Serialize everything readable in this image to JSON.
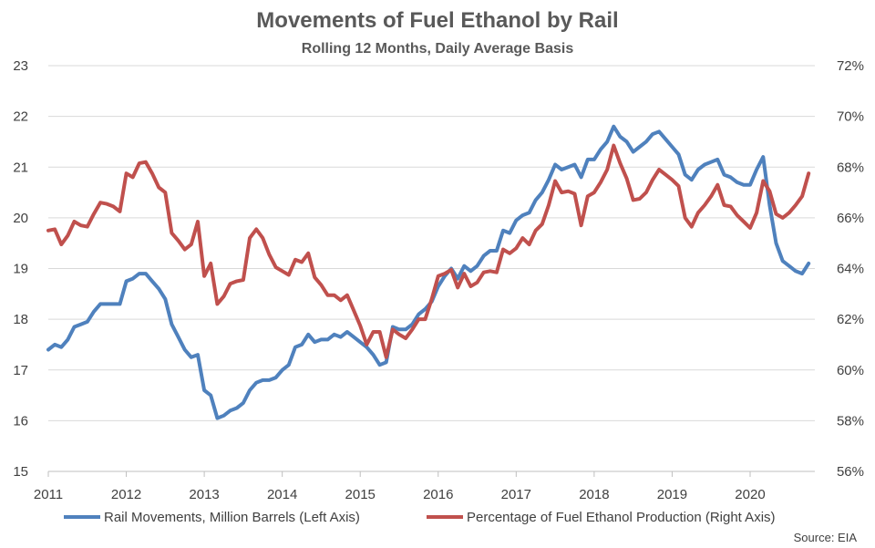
{
  "chart_data": {
    "type": "line",
    "title": "Movements of Fuel Ethanol by Rail",
    "subtitle": "Rolling 12 Months, Daily Average Basis",
    "source": "Source: EIA",
    "ylim_left": [
      15,
      23
    ],
    "ylim_right": [
      56,
      72
    ],
    "left_ticks": [
      "15",
      "16",
      "17",
      "18",
      "19",
      "20",
      "21",
      "22",
      "23"
    ],
    "right_ticks": [
      "56%",
      "58%",
      "60%",
      "62%",
      "64%",
      "66%",
      "68%",
      "70%",
      "72%"
    ],
    "x_ticks": [
      "2011",
      "2012",
      "2013",
      "2014",
      "2015",
      "2016",
      "2017",
      "2018",
      "2019",
      "2020"
    ],
    "xlim": [
      2011,
      2020.83
    ],
    "grid": true,
    "legend_position": "bottom",
    "series": [
      {
        "name": "Rail Movements, Million Barrels (Left Axis)",
        "axis": "left",
        "color": "#4f81bd",
        "x": [
          2011.0,
          2011.083,
          2011.167,
          2011.25,
          2011.333,
          2011.417,
          2011.5,
          2011.583,
          2011.667,
          2011.75,
          2011.833,
          2011.917,
          2012.0,
          2012.083,
          2012.167,
          2012.25,
          2012.333,
          2012.417,
          2012.5,
          2012.583,
          2012.667,
          2012.75,
          2012.833,
          2012.917,
          2013.0,
          2013.083,
          2013.167,
          2013.25,
          2013.333,
          2013.417,
          2013.5,
          2013.583,
          2013.667,
          2013.75,
          2013.833,
          2013.917,
          2014.0,
          2014.083,
          2014.167,
          2014.25,
          2014.333,
          2014.417,
          2014.5,
          2014.583,
          2014.667,
          2014.75,
          2014.833,
          2014.917,
          2015.0,
          2015.083,
          2015.167,
          2015.25,
          2015.333,
          2015.417,
          2015.5,
          2015.583,
          2015.667,
          2015.75,
          2015.833,
          2015.917,
          2016.0,
          2016.083,
          2016.167,
          2016.25,
          2016.333,
          2016.417,
          2016.5,
          2016.583,
          2016.667,
          2016.75,
          2016.833,
          2016.917,
          2017.0,
          2017.083,
          2017.167,
          2017.25,
          2017.333,
          2017.417,
          2017.5,
          2017.583,
          2017.667,
          2017.75,
          2017.833,
          2017.917,
          2018.0,
          2018.083,
          2018.167,
          2018.25,
          2018.333,
          2018.417,
          2018.5,
          2018.583,
          2018.667,
          2018.75,
          2018.833,
          2018.917,
          2019.0,
          2019.083,
          2019.167,
          2019.25,
          2019.333,
          2019.417,
          2019.5,
          2019.583,
          2019.667,
          2019.75,
          2019.833,
          2019.917,
          2020.0,
          2020.083,
          2020.167,
          2020.25,
          2020.333,
          2020.417,
          2020.5,
          2020.583,
          2020.667,
          2020.75
        ],
        "values": [
          17.4,
          17.5,
          17.45,
          17.6,
          17.85,
          17.9,
          17.95,
          18.15,
          18.3,
          18.3,
          18.3,
          18.3,
          18.75,
          18.8,
          18.9,
          18.9,
          18.75,
          18.6,
          18.4,
          17.9,
          17.65,
          17.4,
          17.25,
          17.3,
          16.6,
          16.5,
          16.05,
          16.1,
          16.2,
          16.25,
          16.35,
          16.6,
          16.75,
          16.8,
          16.8,
          16.85,
          17.0,
          17.1,
          17.45,
          17.5,
          17.7,
          17.55,
          17.6,
          17.6,
          17.7,
          17.65,
          17.75,
          17.65,
          17.55,
          17.45,
          17.3,
          17.1,
          17.15,
          17.85,
          17.8,
          17.8,
          17.9,
          18.1,
          18.2,
          18.35,
          18.65,
          18.85,
          19.0,
          18.8,
          19.05,
          18.95,
          19.05,
          19.25,
          19.35,
          19.35,
          19.75,
          19.7,
          19.95,
          20.05,
          20.1,
          20.35,
          20.5,
          20.75,
          21.05,
          20.95,
          21.0,
          21.05,
          20.8,
          21.15,
          21.15,
          21.35,
          21.5,
          21.8,
          21.6,
          21.5,
          21.3,
          21.4,
          21.5,
          21.65,
          21.7,
          21.55,
          21.4,
          21.25,
          20.85,
          20.75,
          20.95,
          21.05,
          21.1,
          21.15,
          20.85,
          20.8,
          20.7,
          20.65,
          20.65,
          20.95,
          21.2,
          20.25,
          19.5,
          19.15,
          19.05,
          18.95,
          18.9,
          19.1
        ]
      },
      {
        "name": "Percentage of Fuel Ethanol Production (Right Axis)",
        "axis": "right",
        "color": "#c0504d",
        "x": [
          2011.0,
          2011.083,
          2011.167,
          2011.25,
          2011.333,
          2011.417,
          2011.5,
          2011.583,
          2011.667,
          2011.75,
          2011.833,
          2011.917,
          2012.0,
          2012.083,
          2012.167,
          2012.25,
          2012.333,
          2012.417,
          2012.5,
          2012.583,
          2012.667,
          2012.75,
          2012.833,
          2012.917,
          2013.0,
          2013.083,
          2013.167,
          2013.25,
          2013.333,
          2013.417,
          2013.5,
          2013.583,
          2013.667,
          2013.75,
          2013.833,
          2013.917,
          2014.0,
          2014.083,
          2014.167,
          2014.25,
          2014.333,
          2014.417,
          2014.5,
          2014.583,
          2014.667,
          2014.75,
          2014.833,
          2014.917,
          2015.0,
          2015.083,
          2015.167,
          2015.25,
          2015.333,
          2015.417,
          2015.5,
          2015.583,
          2015.667,
          2015.75,
          2015.833,
          2015.917,
          2016.0,
          2016.083,
          2016.167,
          2016.25,
          2016.333,
          2016.417,
          2016.5,
          2016.583,
          2016.667,
          2016.75,
          2016.833,
          2016.917,
          2017.0,
          2017.083,
          2017.167,
          2017.25,
          2017.333,
          2017.417,
          2017.5,
          2017.583,
          2017.667,
          2017.75,
          2017.833,
          2017.917,
          2018.0,
          2018.083,
          2018.167,
          2018.25,
          2018.333,
          2018.417,
          2018.5,
          2018.583,
          2018.667,
          2018.75,
          2018.833,
          2018.917,
          2019.0,
          2019.083,
          2019.167,
          2019.25,
          2019.333,
          2019.417,
          2019.5,
          2019.583,
          2019.667,
          2019.75,
          2019.833,
          2019.917,
          2020.0,
          2020.083,
          2020.167,
          2020.25,
          2020.333,
          2020.417,
          2020.5,
          2020.583,
          2020.667,
          2020.75
        ],
        "values": [
          65.5,
          65.55,
          64.95,
          65.3,
          65.85,
          65.7,
          65.65,
          66.15,
          66.6,
          66.55,
          66.45,
          66.25,
          67.75,
          67.6,
          68.15,
          68.2,
          67.75,
          67.2,
          67.0,
          65.4,
          65.1,
          64.75,
          64.95,
          65.85,
          63.7,
          64.2,
          62.6,
          62.9,
          63.4,
          63.5,
          63.55,
          65.2,
          65.55,
          65.2,
          64.55,
          64.05,
          63.9,
          63.75,
          64.35,
          64.25,
          64.6,
          63.65,
          63.35,
          62.95,
          62.95,
          62.75,
          62.95,
          62.35,
          61.75,
          61.0,
          61.5,
          61.5,
          60.5,
          61.6,
          61.4,
          61.25,
          61.6,
          62.0,
          62.0,
          62.8,
          63.7,
          63.8,
          63.95,
          63.25,
          63.8,
          63.3,
          63.45,
          63.85,
          63.9,
          63.85,
          64.75,
          64.6,
          64.8,
          65.2,
          64.95,
          65.5,
          65.75,
          66.5,
          67.45,
          67.0,
          67.05,
          66.95,
          65.7,
          66.85,
          67.0,
          67.4,
          67.9,
          68.85,
          68.15,
          67.55,
          66.7,
          66.75,
          67.0,
          67.5,
          67.9,
          67.7,
          67.5,
          67.25,
          66.0,
          65.65,
          66.2,
          66.5,
          66.85,
          67.3,
          66.5,
          66.45,
          66.1,
          65.85,
          65.6,
          66.2,
          67.45,
          67.05,
          66.15,
          66.0,
          66.2,
          66.5,
          66.85,
          67.75
        ]
      }
    ]
  }
}
